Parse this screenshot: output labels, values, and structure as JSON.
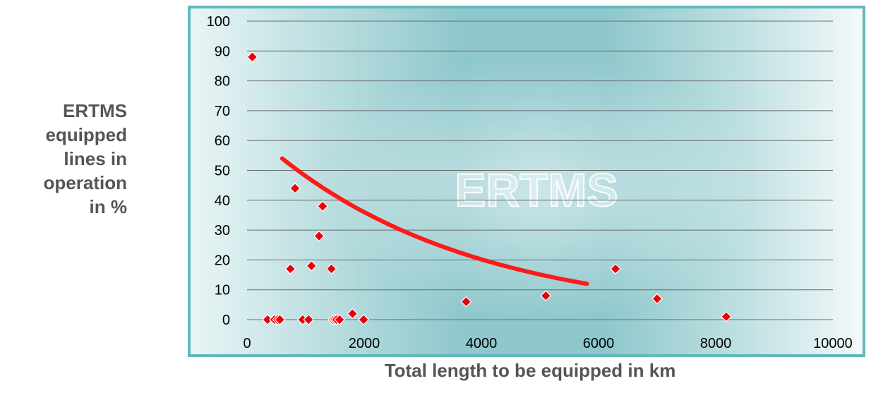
{
  "chart_data": {
    "type": "scatter",
    "xlabel": "Total length to be equipped  in km",
    "ylabel_lines": [
      "ERTMS",
      "equipped",
      "lines in",
      "operation",
      "in %"
    ],
    "xlim": [
      0,
      10000
    ],
    "ylim": [
      0,
      100
    ],
    "x_ticks": [
      0,
      2000,
      4000,
      6000,
      8000,
      10000
    ],
    "y_ticks": [
      0,
      10,
      20,
      30,
      40,
      50,
      60,
      70,
      80,
      90,
      100
    ],
    "grid": "horizontal",
    "background_text": "ERTMS",
    "colors": {
      "points": "#e8000b",
      "trend": "#ff1a1a",
      "gridline": "#6b6b6b",
      "frame": "#63b8bd"
    },
    "series": [
      {
        "marker": "diamond",
        "points": [
          [
            90,
            88
          ],
          [
            740,
            17
          ],
          [
            820,
            44
          ],
          [
            1230,
            28
          ],
          [
            1290,
            38
          ],
          [
            1100,
            18
          ],
          [
            1440,
            17
          ],
          [
            350,
            0
          ],
          [
            470,
            0
          ],
          [
            520,
            0
          ],
          [
            560,
            0
          ],
          [
            950,
            0
          ],
          [
            1050,
            0
          ],
          [
            1470,
            0
          ],
          [
            1500,
            0
          ],
          [
            1530,
            0
          ],
          [
            1580,
            0
          ],
          [
            1800,
            2
          ],
          [
            1990,
            0
          ],
          [
            3740,
            6
          ],
          [
            5100,
            8
          ],
          [
            6290,
            17
          ],
          [
            7000,
            7
          ],
          [
            8180,
            1
          ]
        ]
      }
    ],
    "trendline": {
      "type": "curve",
      "x_range": [
        600,
        5800
      ],
      "y_start": 54,
      "y_end": 12
    }
  }
}
